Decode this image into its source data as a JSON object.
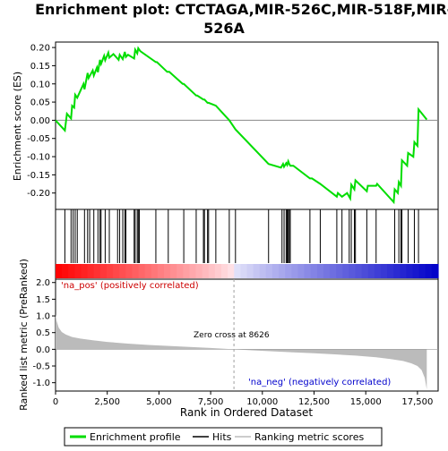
{
  "title_lines": [
    "Enrichment plot: CTCTAGA,MIR-526C,MIR-518F,MIR-",
    "526A"
  ],
  "colors": {
    "enrichment_line": "#00dd00",
    "hits": "#000000",
    "zero_line": "#888888",
    "zero_cross_line": "#a0a0a0",
    "metric_fill": "#bbbbbb",
    "pos_label": "#cc0000",
    "neg_label": "#0000cc",
    "bar_pos_strong": "#ee0000",
    "bar_neg_strong": "#0000cc"
  },
  "chart_data": [
    {
      "type": "line",
      "name": "enrichment-plot",
      "ylabel": "Enrichment score (ES)",
      "xlim": [
        0,
        18500
      ],
      "ylim": [
        -0.245,
        0.215
      ],
      "yticks": [
        0.2,
        0.15,
        0.1,
        0.05,
        0.0,
        -0.05,
        -0.1,
        -0.15,
        -0.2
      ],
      "ytick_labels": [
        "0.20",
        "0.15",
        "0.10",
        "0.05",
        "0.00",
        "-0.05",
        "-0.10",
        "-0.15",
        "-0.20"
      ],
      "series": [
        {
          "x": [
            0,
            450,
            550,
            750,
            800,
            900,
            950,
            1050,
            1350,
            1400,
            1550,
            1600,
            1800,
            1850,
            2000,
            2050,
            2150,
            2200,
            2350,
            2400,
            2550,
            2600,
            2800,
            3050,
            3100,
            3250,
            3350,
            3400,
            3500,
            3800,
            3850,
            3950,
            4000,
            4100,
            4850,
            4900,
            5400,
            5500,
            6150,
            6200,
            6800,
            6850,
            7150,
            7200,
            7350,
            7400,
            7750,
            8400,
            8700,
            10300,
            10900,
            11000,
            11050,
            11150,
            11200,
            11250,
            11300,
            11350,
            11500,
            12300,
            12400,
            12800,
            13600,
            13650,
            13850,
            14100,
            14250,
            14300,
            14450,
            14500,
            15050,
            15100,
            15500,
            15550,
            16350,
            16400,
            16550,
            16600,
            16700,
            16750,
            17000,
            17050,
            17300,
            17350,
            17500,
            17550,
            17950
          ],
          "y": [
            0.0,
            -0.028,
            0.018,
            0.005,
            0.04,
            0.035,
            0.07,
            0.062,
            0.1,
            0.085,
            0.13,
            0.116,
            0.137,
            0.123,
            0.145,
            0.132,
            0.166,
            0.155,
            0.177,
            0.165,
            0.186,
            0.172,
            0.182,
            0.166,
            0.18,
            0.168,
            0.188,
            0.174,
            0.18,
            0.17,
            0.194,
            0.184,
            0.198,
            0.19,
            0.16,
            0.16,
            0.133,
            0.133,
            0.1,
            0.1,
            0.068,
            0.068,
            0.057,
            0.057,
            0.048,
            0.048,
            0.04,
            0.0,
            -0.025,
            -0.12,
            -0.13,
            -0.12,
            -0.128,
            -0.118,
            -0.123,
            -0.113,
            -0.12,
            -0.125,
            -0.125,
            -0.16,
            -0.16,
            -0.175,
            -0.21,
            -0.2,
            -0.21,
            -0.2,
            -0.215,
            -0.177,
            -0.19,
            -0.165,
            -0.195,
            -0.18,
            -0.18,
            -0.175,
            -0.225,
            -0.19,
            -0.2,
            -0.17,
            -0.18,
            -0.11,
            -0.125,
            -0.09,
            -0.1,
            -0.06,
            -0.07,
            0.03,
            0.002
          ]
        }
      ]
    },
    {
      "type": "bar",
      "name": "hits-panel",
      "hit_positions": [
        450,
        750,
        850,
        950,
        1050,
        1400,
        1550,
        1650,
        1850,
        2050,
        2150,
        2200,
        2400,
        2600,
        3000,
        3100,
        3250,
        3350,
        3400,
        3800,
        3850,
        3950,
        4000,
        4050,
        4850,
        5450,
        6200,
        6800,
        7150,
        7200,
        7350,
        7400,
        7750,
        8400,
        8700,
        10300,
        10950,
        11050,
        11150,
        11200,
        11250,
        11300,
        11350,
        12300,
        12800,
        13600,
        13850,
        14200,
        14300,
        14450,
        14500,
        15050,
        15500,
        16400,
        16600,
        16700,
        16750,
        17050,
        17350,
        17550
      ]
    },
    {
      "type": "area",
      "name": "ranking-metric",
      "ylabel": "Ranked list metric (PreRanked)",
      "xlabel": "Rank in Ordered Dataset",
      "xlim": [
        0,
        18500
      ],
      "ylim": [
        -1.25,
        2.1
      ],
      "xticks": [
        0,
        2500,
        5000,
        7500,
        10000,
        12500,
        15000,
        17500
      ],
      "xtick_labels": [
        "0",
        "2,500",
        "5,000",
        "7,500",
        "10,000",
        "12,500",
        "15,000",
        "17,500"
      ],
      "yticks": [
        2.0,
        1.5,
        1.0,
        0.5,
        0.0,
        -0.5,
        -1.0
      ],
      "ytick_labels": [
        "2.0",
        "1.5",
        "1.0",
        "0.5",
        "0.0",
        "-0.5",
        "-1.0"
      ],
      "x": [
        0,
        50,
        150,
        300,
        500,
        800,
        1200,
        1800,
        2500,
        3500,
        4500,
        5500,
        6500,
        7500,
        8626,
        9500,
        10500,
        11500,
        12500,
        13500,
        14500,
        15500,
        16200,
        16800,
        17200,
        17500,
        17700,
        17850,
        17950
      ],
      "values": [
        1.05,
        0.85,
        0.65,
        0.52,
        0.44,
        0.37,
        0.32,
        0.27,
        0.22,
        0.17,
        0.13,
        0.1,
        0.07,
        0.04,
        0.0,
        -0.03,
        -0.06,
        -0.09,
        -0.12,
        -0.15,
        -0.19,
        -0.24,
        -0.29,
        -0.35,
        -0.42,
        -0.5,
        -0.62,
        -0.85,
        -1.2
      ],
      "zero_cross": 8626,
      "zero_cross_label": "Zero cross at 8626",
      "pos_label": "'na_pos' (positively correlated)",
      "neg_label": "'na_neg' (negatively correlated)"
    }
  ],
  "legend": {
    "items": [
      {
        "label": "Enrichment profile",
        "symbol": "green-line"
      },
      {
        "label": "Hits",
        "symbol": "black-line"
      },
      {
        "label": "Ranking metric scores",
        "symbol": "gray-line"
      }
    ]
  }
}
